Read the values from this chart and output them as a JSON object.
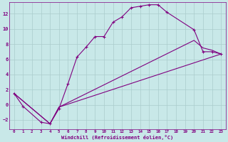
{
  "xlabel": "Windchill (Refroidissement éolien,°C)",
  "bg_color": "#c8e8e8",
  "line_color": "#800080",
  "grid_color": "#aacccc",
  "xlim": [
    -0.5,
    23.5
  ],
  "ylim": [
    -3.2,
    13.5
  ],
  "xticks": [
    0,
    1,
    2,
    3,
    4,
    5,
    6,
    7,
    8,
    9,
    10,
    11,
    12,
    13,
    14,
    15,
    16,
    17,
    18,
    19,
    20,
    21,
    22,
    23
  ],
  "yticks": [
    -2,
    0,
    2,
    4,
    6,
    8,
    10,
    12
  ],
  "curve1_x": [
    0,
    1,
    3,
    4,
    5,
    6,
    7,
    8,
    9,
    10,
    11,
    12,
    13,
    14,
    15,
    16,
    17,
    20,
    21,
    22,
    23
  ],
  "curve1_y": [
    1.5,
    -0.2,
    -2.3,
    -2.5,
    -0.5,
    2.8,
    6.3,
    7.6,
    9.0,
    9.0,
    10.9,
    11.6,
    12.8,
    13.0,
    13.2,
    13.2,
    12.2,
    9.9,
    7.0,
    7.0,
    6.7
  ],
  "curve2_x": [
    0,
    4,
    5,
    23
  ],
  "curve2_y": [
    1.5,
    -2.5,
    -0.3,
    6.7
  ],
  "curve3_x": [
    0,
    4,
    5,
    20,
    21,
    22,
    23
  ],
  "curve3_y": [
    1.5,
    -2.5,
    -0.3,
    8.5,
    7.5,
    7.2,
    6.7
  ]
}
